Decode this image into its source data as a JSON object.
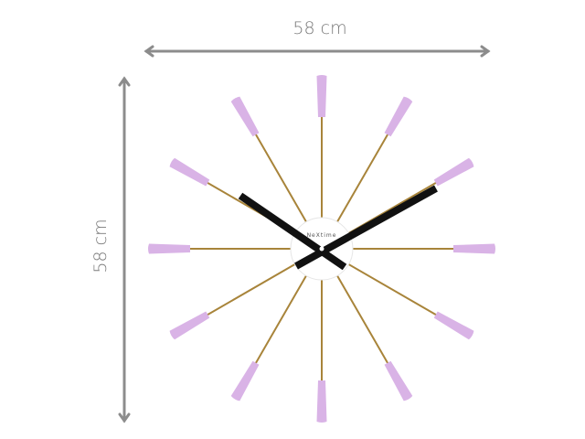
{
  "dimensions": {
    "width_label": "58 cm",
    "height_label": "58 cm"
  },
  "product": {
    "type": "wall clock",
    "brand_logo": "NeXtime",
    "spoke_count": 12,
    "colors": {
      "tips": "#d9b3e6",
      "rods": "#a8843a",
      "hands": "#111111",
      "center": "#ffffff",
      "arrows": "#8c8c8c"
    }
  }
}
